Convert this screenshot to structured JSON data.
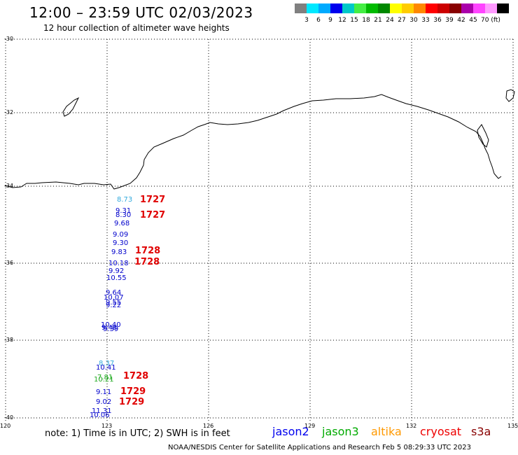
{
  "title": "12:00 – 23:59 UTC 02/03/2023",
  "subtitle": "12 hour collection of altimeter wave heights",
  "colorbar": {
    "colors": [
      "#808080",
      "#00e8ff",
      "#00aaff",
      "#0000ee",
      "#00c8c8",
      "#44ee44",
      "#00bb00",
      "#008800",
      "#ffff00",
      "#ffcc00",
      "#ff8800",
      "#ff0000",
      "#cc0000",
      "#880000",
      "#aa00aa",
      "#ff44ff",
      "#ff99ff",
      "#000000"
    ],
    "labels": [
      "3",
      "6",
      "9",
      "12",
      "15",
      "18",
      "21",
      "24",
      "27",
      "30",
      "33",
      "36",
      "39",
      "42",
      "45",
      "70 (ft)"
    ]
  },
  "axes": {
    "lat_labels": [
      "-30",
      "-32",
      "-34",
      "-36",
      "-38",
      "-40"
    ],
    "lon_labels": [
      "120",
      "123",
      "126",
      "129",
      "132",
      "135"
    ]
  },
  "observations": [
    {
      "text": "8.73",
      "color": "#33aadd"
    },
    {
      "text": "9.31",
      "color": "#0000cc"
    },
    {
      "text": "8.30",
      "color": "#0000cc"
    },
    {
      "text": "9.68",
      "color": "#0000cc"
    },
    {
      "text": "9.09",
      "color": "#0000cc"
    },
    {
      "text": "9.30",
      "color": "#0000cc"
    },
    {
      "text": "9.83",
      "color": "#0000cc"
    },
    {
      "text": "10.18",
      "color": "#0000cc"
    },
    {
      "text": "9.92",
      "color": "#0000cc"
    },
    {
      "text": "10.55",
      "color": "#0000cc"
    },
    {
      "text": "9.64",
      "color": "#0000cc"
    },
    {
      "text": "10.07",
      "color": "#0000cc"
    },
    {
      "text": "9.55",
      "color": "#0000cc"
    },
    {
      "text": "9.22",
      "color": "#0000cc"
    },
    {
      "text": "10.40",
      "color": "#0000cc"
    },
    {
      "text": "9.48",
      "color": "#0000cc"
    },
    {
      "text": "9.39",
      "color": "#0000cc"
    },
    {
      "text": "8.37",
      "color": "#33aadd"
    },
    {
      "text": "10.41",
      "color": "#0000cc"
    },
    {
      "text": "7.81",
      "color": "#22aa22"
    },
    {
      "text": "10.21",
      "color": "#22aa22"
    },
    {
      "text": "9.11",
      "color": "#0000cc"
    },
    {
      "text": "9.02",
      "color": "#0000cc"
    },
    {
      "text": "11.31",
      "color": "#0000cc"
    },
    {
      "text": "10.06",
      "color": "#0000cc"
    }
  ],
  "pass_times": [
    "1727",
    "1727",
    "1728",
    "1728",
    "1728",
    "1729",
    "1729"
  ],
  "note": "note: 1) Time is in UTC; 2) SWH is in feet",
  "satellites": [
    {
      "name": "jason2",
      "color": "#0000ee"
    },
    {
      "name": "jason3",
      "color": "#00aa00"
    },
    {
      "name": "altika",
      "color": "#ff9900"
    },
    {
      "name": "cryosat",
      "color": "#ee0000"
    },
    {
      "name": "s3a",
      "color": "#880000"
    }
  ],
  "footer": "NOAA/NESDIS Center for Satellite Applications and Research   Feb  5 08:29:33 UTC 2023"
}
